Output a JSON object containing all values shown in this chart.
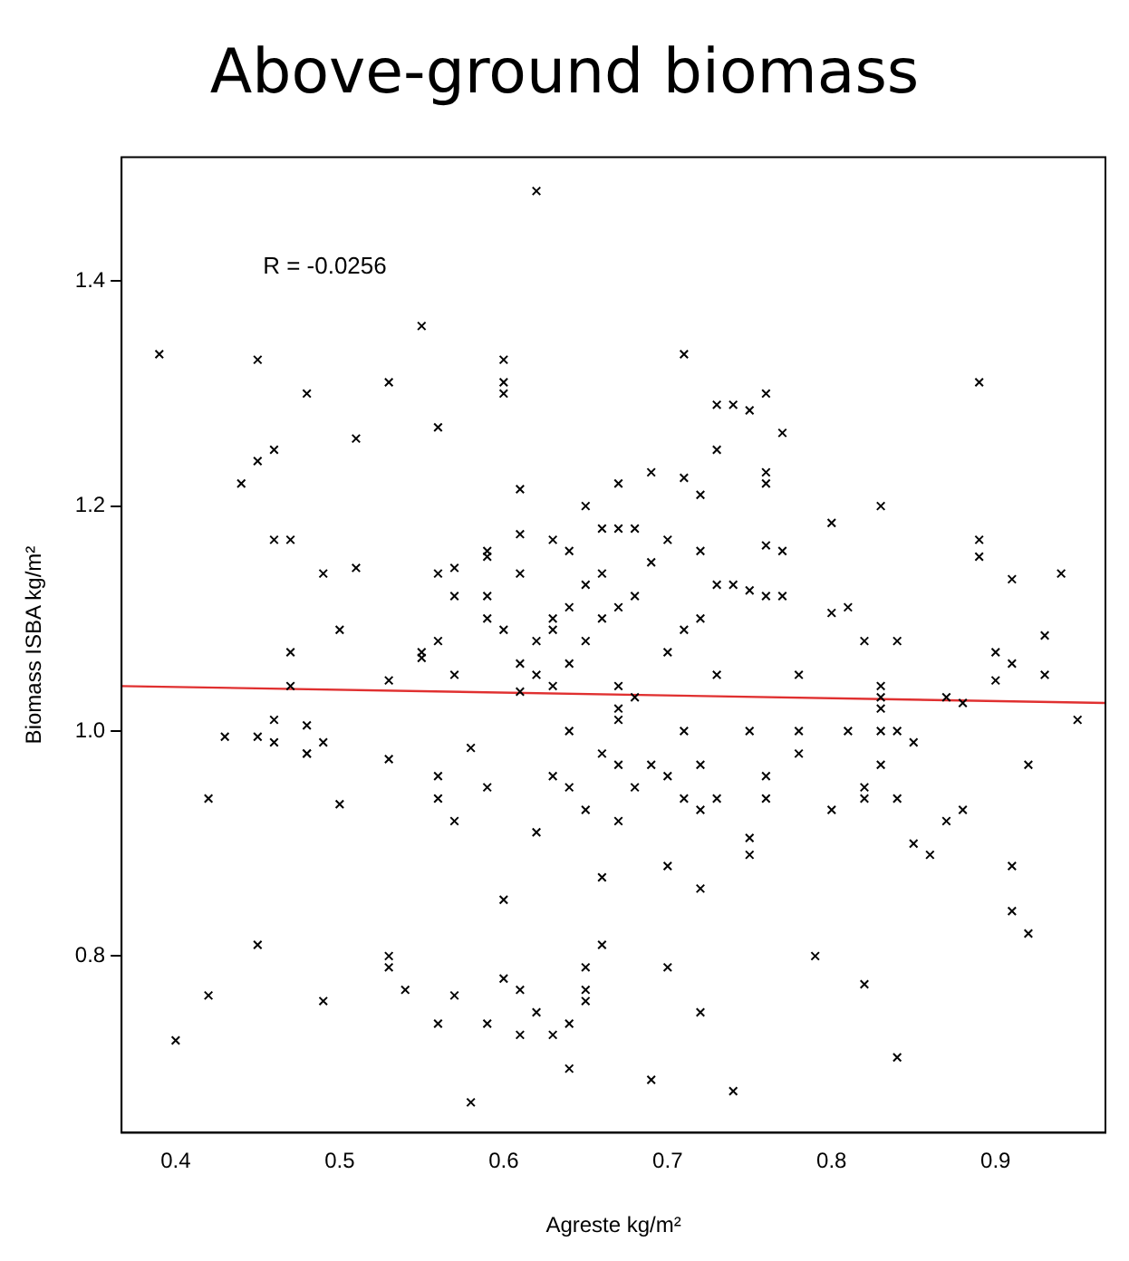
{
  "chart_data": {
    "type": "scatter",
    "title": "Above-ground biomass",
    "xlabel": "Agreste kg/m²",
    "ylabel": "Biomass ISBA kg/m²",
    "xlim": [
      0.367,
      0.967
    ],
    "ylim": [
      0.643,
      1.51
    ],
    "xticks": [
      0.4,
      0.5,
      0.6,
      0.7,
      0.8,
      0.9
    ],
    "yticks": [
      0.8,
      {
        "value": 1,
        "label": "1.0"
      },
      1.2,
      1.4
    ],
    "grid": false,
    "legend": false,
    "marker": "cross",
    "annotations": [
      "R = -0.0256"
    ],
    "series": [
      {
        "color": "#000000",
        "x": [
          0.39,
          0.4,
          0.42,
          0.42,
          0.43,
          0.44,
          0.45,
          0.45,
          0.45,
          0.45,
          0.46,
          0.46,
          0.46,
          0.46,
          0.47,
          0.47,
          0.47,
          0.48,
          0.48,
          0.48,
          0.48,
          0.49,
          0.49,
          0.49,
          0.5,
          0.5,
          0.51,
          0.51,
          0.53,
          0.53,
          0.53,
          0.53,
          0.53,
          0.54,
          0.55,
          0.55,
          0.55,
          0.56,
          0.56,
          0.56,
          0.56,
          0.56,
          0.56,
          0.57,
          0.57,
          0.57,
          0.57,
          0.57,
          0.58,
          0.58,
          0.59,
          0.59,
          0.59,
          0.59,
          0.59,
          0.59,
          0.6,
          0.6,
          0.6,
          0.6,
          0.6,
          0.6,
          0.61,
          0.61,
          0.61,
          0.61,
          0.61,
          0.61,
          0.61,
          0.62,
          0.62,
          0.62,
          0.62,
          0.62,
          0.63,
          0.63,
          0.63,
          0.63,
          0.63,
          0.63,
          0.64,
          0.64,
          0.64,
          0.64,
          0.64,
          0.64,
          0.64,
          0.65,
          0.65,
          0.65,
          0.65,
          0.65,
          0.65,
          0.65,
          0.66,
          0.66,
          0.66,
          0.66,
          0.66,
          0.66,
          0.67,
          0.67,
          0.67,
          0.67,
          0.67,
          0.67,
          0.67,
          0.67,
          0.68,
          0.68,
          0.68,
          0.68,
          0.69,
          0.69,
          0.69,
          0.69,
          0.7,
          0.7,
          0.7,
          0.7,
          0.7,
          0.71,
          0.71,
          0.71,
          0.71,
          0.71,
          0.72,
          0.72,
          0.72,
          0.72,
          0.72,
          0.72,
          0.72,
          0.73,
          0.73,
          0.73,
          0.73,
          0.73,
          0.74,
          0.74,
          0.74,
          0.75,
          0.75,
          0.75,
          0.75,
          0.75,
          0.76,
          0.76,
          0.76,
          0.76,
          0.76,
          0.76,
          0.76,
          0.77,
          0.77,
          0.77,
          0.78,
          0.78,
          0.78,
          0.79,
          0.8,
          0.8,
          0.8,
          0.81,
          0.81,
          0.82,
          0.82,
          0.82,
          0.82,
          0.83,
          0.83,
          0.83,
          0.83,
          0.83,
          0.83,
          0.84,
          0.84,
          0.84,
          0.84,
          0.85,
          0.85,
          0.86,
          0.87,
          0.87,
          0.88,
          0.88,
          0.89,
          0.89,
          0.89,
          0.9,
          0.9,
          0.91,
          0.91,
          0.91,
          0.91,
          0.92,
          0.92,
          0.93,
          0.93,
          0.94,
          0.95
        ],
        "values": [
          1.335,
          0.725,
          0.765,
          0.94,
          0.995,
          1.22,
          1.24,
          1.33,
          0.81,
          0.995,
          1.25,
          1.17,
          1.01,
          0.99,
          1.17,
          1.04,
          1.07,
          1.3,
          0.98,
          1.005,
          0.98,
          1.14,
          0.99,
          0.76,
          1.09,
          0.935,
          1.26,
          1.145,
          1.31,
          1.045,
          0.975,
          0.8,
          0.79,
          0.77,
          1.36,
          1.065,
          1.07,
          1.27,
          1.14,
          1.08,
          0.96,
          0.94,
          0.74,
          1.145,
          1.12,
          1.05,
          0.92,
          0.765,
          0.985,
          0.67,
          1.155,
          1.16,
          1.12,
          1.1,
          0.95,
          0.74,
          1.33,
          1.31,
          1.3,
          1.09,
          0.85,
          0.78,
          1.215,
          1.175,
          1.14,
          1.06,
          1.035,
          0.77,
          0.73,
          1.48,
          1.08,
          1.05,
          0.91,
          0.75,
          1.17,
          1.1,
          1.09,
          1.04,
          0.96,
          0.73,
          1.16,
          1.11,
          1.06,
          1.0,
          0.95,
          0.74,
          0.7,
          1.2,
          1.13,
          1.08,
          0.93,
          0.79,
          0.77,
          0.76,
          1.18,
          1.14,
          1.1,
          0.98,
          0.87,
          0.81,
          1.22,
          1.18,
          1.11,
          1.04,
          1.02,
          1.01,
          0.97,
          0.92,
          1.18,
          1.12,
          1.03,
          0.95,
          1.23,
          1.15,
          0.97,
          0.69,
          1.17,
          1.07,
          0.96,
          0.88,
          0.79,
          1.335,
          1.225,
          1.09,
          1.0,
          0.94,
          1.21,
          1.16,
          1.1,
          0.97,
          0.93,
          0.86,
          0.75,
          1.29,
          1.25,
          1.13,
          1.05,
          0.94,
          1.29,
          1.13,
          0.68,
          1.285,
          1.125,
          1.0,
          0.905,
          0.89,
          1.3,
          1.23,
          1.22,
          1.165,
          1.12,
          0.96,
          0.94,
          1.265,
          1.16,
          1.12,
          1.05,
          1.0,
          0.98,
          0.8,
          1.185,
          1.105,
          0.93,
          1.11,
          1.0,
          1.08,
          0.95,
          0.94,
          0.775,
          1.2,
          1.04,
          1.03,
          1.02,
          1.0,
          0.97,
          1.08,
          1.0,
          0.94,
          0.71,
          0.99,
          0.9,
          0.89,
          1.03,
          0.92,
          1.025,
          0.93,
          1.31,
          1.17,
          1.155,
          1.07,
          1.045,
          1.135,
          1.06,
          0.88,
          0.84,
          0.82,
          0.97,
          1.085,
          1.05,
          1.14,
          1.01
        ]
      },
      {
        "type": "line",
        "color": "#e03030",
        "marker": "none",
        "x": [
          0.367,
          0.967
        ],
        "values": [
          1.04,
          1.025
        ]
      }
    ]
  }
}
